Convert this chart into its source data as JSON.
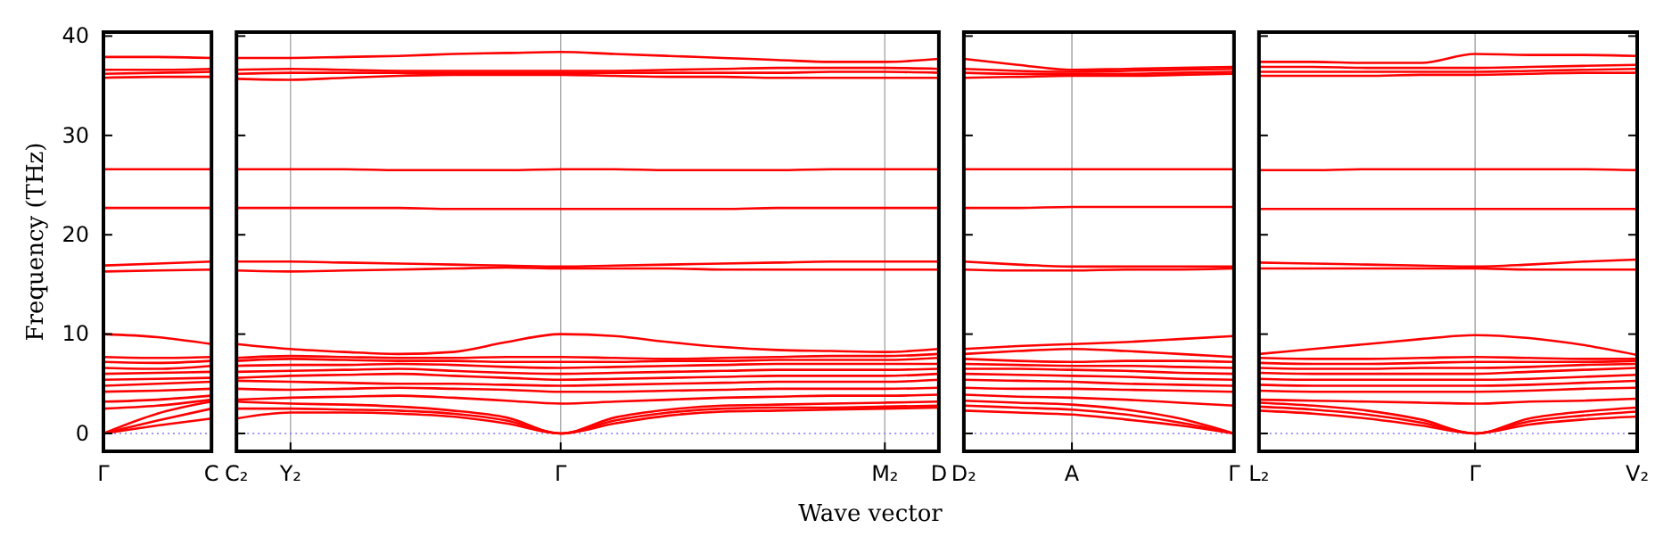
{
  "chart_data": [
    {
      "type": "line",
      "ylabel": "Frequency (THz)",
      "categories": [
        "Γ",
        null,
        "C"
      ],
      "ylim": [
        -1.8,
        40.4
      ],
      "yticks": [
        0,
        10,
        20,
        30,
        40
      ],
      "ref_lines": [
        {
          "axis": "y",
          "value": 0,
          "color": "#7777ff",
          "line_style": "dotted"
        }
      ],
      "series": [
        {
          "color": "#ff0000",
          "values": [
            0,
            0.8,
            1.5
          ]
        },
        {
          "color": "#ff0000",
          "values": [
            0,
            1.3,
            2.5
          ]
        },
        {
          "color": "#ff0000",
          "values": [
            0,
            2,
            3.2
          ]
        },
        {
          "color": "#ff0000",
          "values": [
            2.5,
            2.8,
            3.4
          ]
        },
        {
          "color": "#ff0000",
          "values": [
            3.2,
            3.4,
            3.8
          ]
        },
        {
          "color": "#ff0000",
          "values": [
            4.2,
            4.3,
            4.5
          ]
        },
        {
          "color": "#ff0000",
          "values": [
            4.8,
            5,
            5.2
          ]
        },
        {
          "color": "#ff0000",
          "values": [
            5.4,
            5.5,
            5.6
          ]
        },
        {
          "color": "#ff0000",
          "values": [
            6,
            6.1,
            6.2
          ]
        },
        {
          "color": "#ff0000",
          "values": [
            6.6,
            6.5,
            6.8
          ]
        },
        {
          "color": "#ff0000",
          "values": [
            7.2,
            7.1,
            7.3
          ]
        },
        {
          "color": "#ff0000",
          "values": [
            7.7,
            7.6,
            7.7
          ]
        },
        {
          "color": "#ff0000",
          "values": [
            10,
            9.7,
            9
          ]
        },
        {
          "color": "#ff0000",
          "values": [
            16.3,
            16.4,
            16.5
          ]
        },
        {
          "color": "#ff0000",
          "values": [
            16.9,
            17.1,
            17.3
          ]
        },
        {
          "color": "#ff0000",
          "values": [
            22.7,
            22.7,
            22.7
          ]
        },
        {
          "color": "#ff0000",
          "values": [
            26.6,
            26.6,
            26.6
          ]
        },
        {
          "color": "#ff0000",
          "values": [
            35.8,
            35.9,
            35.9
          ]
        },
        {
          "color": "#ff0000",
          "values": [
            36.2,
            36.3,
            36.4
          ]
        },
        {
          "color": "#ff0000",
          "values": [
            36.6,
            36.6,
            36.7
          ]
        },
        {
          "color": "#ff0000",
          "values": [
            37.9,
            37.9,
            37.8
          ]
        }
      ]
    },
    {
      "type": "line",
      "xlabel": "Wave vector",
      "categories": [
        "C₂",
        "Y₂",
        null,
        null,
        null,
        null,
        "Γ",
        null,
        null,
        null,
        null,
        null,
        "M₂",
        "D"
      ],
      "ylim": [
        -1.8,
        40.4
      ],
      "yticks": [
        0,
        10,
        20,
        30,
        40
      ],
      "tick_labels": "x",
      "grid": "x",
      "ref_lines": [
        {
          "axis": "y",
          "value": 0,
          "color": "#7777ff",
          "line_style": "dotted"
        }
      ],
      "series": [
        {
          "color": "#ff0000",
          "values": [
            1.5,
            2.1,
            2.1,
            2.0,
            1.7,
            1.0,
            0,
            1.0,
            1.8,
            2.2,
            2.3,
            2.4,
            2.5,
            2.6
          ]
        },
        {
          "color": "#ff0000",
          "values": [
            2.5,
            2.5,
            2.4,
            2.3,
            2.0,
            1.3,
            0,
            1.3,
            2.1,
            2.5,
            2.6,
            2.6,
            2.7,
            2.8
          ]
        },
        {
          "color": "#ff0000",
          "values": [
            3.2,
            3.0,
            2.9,
            2.7,
            2.3,
            1.6,
            0,
            1.6,
            2.4,
            2.8,
            2.9,
            3.0,
            3.1,
            3.2
          ]
        },
        {
          "color": "#ff0000",
          "values": [
            3.4,
            3.6,
            3.7,
            3.8,
            3.6,
            3.3,
            3.0,
            3.2,
            3.4,
            3.6,
            3.7,
            3.8,
            3.8,
            3.9
          ]
        },
        {
          "color": "#ff0000",
          "values": [
            4.5,
            4.4,
            4.5,
            4.6,
            4.5,
            4.4,
            4.2,
            4.2,
            4.3,
            4.4,
            4.5,
            4.5,
            4.5,
            4.6
          ]
        },
        {
          "color": "#ff0000",
          "values": [
            5.3,
            5.2,
            5.1,
            5.0,
            5.0,
            4.9,
            4.8,
            4.9,
            5.0,
            5.1,
            5.2,
            5.2,
            5.2,
            5.4
          ]
        },
        {
          "color": "#ff0000",
          "values": [
            5.6,
            5.8,
            5.9,
            6.0,
            5.8,
            5.6,
            5.4,
            5.5,
            5.6,
            5.7,
            5.8,
            5.8,
            5.8,
            6.0
          ]
        },
        {
          "color": "#ff0000",
          "values": [
            6.2,
            6.3,
            6.4,
            6.5,
            6.3,
            6.1,
            6.0,
            6.1,
            6.2,
            6.3,
            6.4,
            6.4,
            6.4,
            6.5
          ]
        },
        {
          "color": "#ff0000",
          "values": [
            6.8,
            6.9,
            6.9,
            7.0,
            6.9,
            6.7,
            6.6,
            6.7,
            6.8,
            6.9,
            7.0,
            7.0,
            7.0,
            7.0
          ]
        },
        {
          "color": "#ff0000",
          "values": [
            7.3,
            7.5,
            7.4,
            7.3,
            7.3,
            7.2,
            7.2,
            7.2,
            7.3,
            7.3,
            7.4,
            7.4,
            7.4,
            7.6
          ]
        },
        {
          "color": "#ff0000",
          "values": [
            7.6,
            7.8,
            7.7,
            7.6,
            7.6,
            7.7,
            7.7,
            7.6,
            7.5,
            7.6,
            7.7,
            7.8,
            7.8,
            8.0
          ]
        },
        {
          "color": "#ff0000",
          "values": [
            9.0,
            8.5,
            8.2,
            8.0,
            8.2,
            9.2,
            10.0,
            9.8,
            9.2,
            8.7,
            8.4,
            8.3,
            8.2,
            8.5
          ]
        },
        {
          "color": "#ff0000",
          "values": [
            16.4,
            16.3,
            16.4,
            16.5,
            16.6,
            16.7,
            16.6,
            16.6,
            16.6,
            16.5,
            16.5,
            16.5,
            16.5,
            16.5
          ]
        },
        {
          "color": "#ff0000",
          "values": [
            17.3,
            17.3,
            17.2,
            17.1,
            17.0,
            16.9,
            16.8,
            16.9,
            17.0,
            17.1,
            17.2,
            17.3,
            17.3,
            17.3
          ]
        },
        {
          "color": "#ff0000",
          "values": [
            22.7,
            22.7,
            22.7,
            22.7,
            22.6,
            22.6,
            22.6,
            22.6,
            22.6,
            22.6,
            22.7,
            22.7,
            22.7,
            22.7
          ]
        },
        {
          "color": "#ff0000",
          "values": [
            26.6,
            26.6,
            26.6,
            26.5,
            26.5,
            26.5,
            26.6,
            26.6,
            26.5,
            26.5,
            26.5,
            26.6,
            26.6,
            26.6
          ]
        },
        {
          "color": "#ff0000",
          "values": [
            35.7,
            35.6,
            35.8,
            36.0,
            36.1,
            36.1,
            36.1,
            36.0,
            35.9,
            35.9,
            35.8,
            35.8,
            35.8,
            35.8
          ]
        },
        {
          "color": "#ff0000",
          "values": [
            36.2,
            36.3,
            36.3,
            36.3,
            36.3,
            36.3,
            36.3,
            36.3,
            36.3,
            36.3,
            36.3,
            36.4,
            36.4,
            36.3
          ]
        },
        {
          "color": "#ff0000",
          "values": [
            36.6,
            36.7,
            36.6,
            36.5,
            36.5,
            36.5,
            36.5,
            36.5,
            36.6,
            36.7,
            36.8,
            36.8,
            36.8,
            36.7
          ]
        },
        {
          "color": "#ff0000",
          "values": [
            37.8,
            37.8,
            37.9,
            38.0,
            38.2,
            38.3,
            38.4,
            38.2,
            38.0,
            37.8,
            37.6,
            37.4,
            37.4,
            37.7
          ]
        }
      ]
    },
    {
      "type": "line",
      "categories": [
        "D₂",
        null,
        "A",
        null,
        null,
        "Γ"
      ],
      "ylim": [
        -1.8,
        40.4
      ],
      "yticks": [
        0,
        10,
        20,
        30,
        40
      ],
      "tick_labels": "x",
      "ref_lines": [
        {
          "axis": "y",
          "value": 0,
          "color": "#7777ff",
          "line_style": "dotted"
        },
        {
          "axis": "x",
          "value": "A",
          "color": "#aaaaaa",
          "line_style": "solid"
        }
      ],
      "series": [
        {
          "color": "#ff0000",
          "values": [
            2.3,
            2.1,
            1.9,
            1.4,
            0.8,
            0
          ]
        },
        {
          "color": "#ff0000",
          "values": [
            2.8,
            2.6,
            2.4,
            1.9,
            1.1,
            0
          ]
        },
        {
          "color": "#ff0000",
          "values": [
            3.3,
            3.1,
            2.9,
            2.4,
            1.5,
            0
          ]
        },
        {
          "color": "#ff0000",
          "values": [
            3.9,
            3.7,
            3.6,
            3.4,
            3.1,
            2.8
          ]
        },
        {
          "color": "#ff0000",
          "values": [
            4.6,
            4.5,
            4.5,
            4.4,
            4.3,
            4.2
          ]
        },
        {
          "color": "#ff0000",
          "values": [
            5.4,
            5.3,
            5.2,
            5.0,
            4.9,
            4.8
          ]
        },
        {
          "color": "#ff0000",
          "values": [
            6.0,
            5.9,
            5.8,
            5.7,
            5.5,
            5.4
          ]
        },
        {
          "color": "#ff0000",
          "values": [
            6.5,
            6.5,
            6.4,
            6.3,
            6.1,
            6.0
          ]
        },
        {
          "color": "#ff0000",
          "values": [
            7.0,
            6.9,
            6.8,
            6.8,
            6.7,
            6.6
          ]
        },
        {
          "color": "#ff0000",
          "values": [
            7.5,
            7.3,
            7.2,
            7.3,
            7.3,
            7.2
          ]
        },
        {
          "color": "#ff0000",
          "values": [
            8.0,
            8.3,
            8.5,
            8.3,
            8.0,
            7.7
          ]
        },
        {
          "color": "#ff0000",
          "values": [
            8.5,
            8.8,
            9.0,
            9.2,
            9.5,
            9.8
          ]
        },
        {
          "color": "#ff0000",
          "values": [
            16.5,
            16.4,
            16.4,
            16.5,
            16.5,
            16.6
          ]
        },
        {
          "color": "#ff0000",
          "values": [
            17.3,
            17.0,
            16.8,
            16.8,
            16.8,
            16.8
          ]
        },
        {
          "color": "#ff0000",
          "values": [
            22.7,
            22.7,
            22.8,
            22.8,
            22.8,
            22.8
          ]
        },
        {
          "color": "#ff0000",
          "values": [
            26.6,
            26.6,
            26.6,
            26.6,
            26.6,
            26.6
          ]
        },
        {
          "color": "#ff0000",
          "values": [
            35.8,
            35.9,
            36.0,
            36.0,
            36.1,
            36.2
          ]
        },
        {
          "color": "#ff0000",
          "values": [
            36.3,
            36.2,
            36.2,
            36.2,
            36.3,
            36.4
          ]
        },
        {
          "color": "#ff0000",
          "values": [
            36.7,
            36.5,
            36.4,
            36.5,
            36.6,
            36.7
          ]
        },
        {
          "color": "#ff0000",
          "values": [
            37.7,
            37.1,
            36.6,
            36.7,
            36.8,
            36.9
          ]
        }
      ]
    },
    {
      "type": "line",
      "categories": [
        "L₂",
        null,
        null,
        null,
        "Γ",
        null,
        null,
        "V₂"
      ],
      "ylim": [
        -1.8,
        40.4
      ],
      "yticks": [
        0,
        10,
        20,
        30,
        40
      ],
      "tick_labels": "x",
      "ref_lines": [
        {
          "axis": "y",
          "value": 0,
          "color": "#7777ff",
          "line_style": "dotted"
        },
        {
          "axis": "x",
          "value": "Γ",
          "color": "#aaaaaa",
          "line_style": "solid"
        }
      ],
      "series": [
        {
          "color": "#ff0000",
          "values": [
            2.3,
            2.0,
            1.5,
            0.8,
            0,
            0.9,
            1.4,
            1.7
          ]
        },
        {
          "color": "#ff0000",
          "values": [
            2.7,
            2.4,
            1.9,
            1.1,
            0,
            1.2,
            1.8,
            2.2
          ]
        },
        {
          "color": "#ff0000",
          "values": [
            3.1,
            2.8,
            2.3,
            1.4,
            0,
            1.5,
            2.2,
            2.6
          ]
        },
        {
          "color": "#ff0000",
          "values": [
            3.4,
            3.3,
            3.2,
            3.1,
            3.0,
            3.2,
            3.3,
            3.5
          ]
        },
        {
          "color": "#ff0000",
          "values": [
            4.3,
            4.2,
            4.2,
            4.2,
            4.2,
            4.3,
            4.5,
            4.6
          ]
        },
        {
          "color": "#ff0000",
          "values": [
            4.9,
            4.8,
            4.8,
            4.8,
            4.8,
            4.9,
            5.1,
            5.3
          ]
        },
        {
          "color": "#ff0000",
          "values": [
            5.5,
            5.4,
            5.4,
            5.4,
            5.4,
            5.5,
            5.7,
            5.9
          ]
        },
        {
          "color": "#ff0000",
          "values": [
            6.1,
            6.0,
            6.0,
            6.0,
            6.0,
            6.2,
            6.4,
            6.6
          ]
        },
        {
          "color": "#ff0000",
          "values": [
            6.6,
            6.5,
            6.5,
            6.6,
            6.6,
            6.7,
            6.9,
            7.0
          ]
        },
        {
          "color": "#ff0000",
          "values": [
            7.1,
            7.0,
            7.0,
            7.1,
            7.2,
            7.2,
            7.2,
            7.3
          ]
        },
        {
          "color": "#ff0000",
          "values": [
            7.6,
            7.5,
            7.5,
            7.6,
            7.7,
            7.6,
            7.5,
            7.5
          ]
        },
        {
          "color": "#ff0000",
          "values": [
            8.0,
            8.5,
            9.0,
            9.5,
            9.9,
            9.6,
            8.9,
            7.9
          ]
        },
        {
          "color": "#ff0000",
          "values": [
            16.6,
            16.6,
            16.6,
            16.6,
            16.6,
            16.5,
            16.5,
            16.5
          ]
        },
        {
          "color": "#ff0000",
          "values": [
            17.2,
            17.1,
            17.0,
            16.9,
            16.8,
            17.0,
            17.3,
            17.5
          ]
        },
        {
          "color": "#ff0000",
          "values": [
            22.6,
            22.6,
            22.6,
            22.6,
            22.6,
            22.6,
            22.6,
            22.6
          ]
        },
        {
          "color": "#ff0000",
          "values": [
            26.5,
            26.5,
            26.6,
            26.6,
            26.6,
            26.6,
            26.6,
            26.5
          ]
        },
        {
          "color": "#ff0000",
          "values": [
            36.0,
            36.0,
            36.0,
            36.1,
            36.1,
            36.2,
            36.3,
            36.3
          ]
        },
        {
          "color": "#ff0000",
          "values": [
            36.4,
            36.4,
            36.4,
            36.4,
            36.4,
            36.5,
            36.6,
            36.7
          ]
        },
        {
          "color": "#ff0000",
          "values": [
            36.9,
            36.9,
            36.8,
            36.8,
            36.8,
            36.9,
            37.0,
            37.1
          ]
        },
        {
          "color": "#ff0000",
          "values": [
            37.4,
            37.4,
            37.3,
            37.3,
            38.2,
            38.1,
            38.1,
            38.0
          ]
        }
      ]
    }
  ]
}
